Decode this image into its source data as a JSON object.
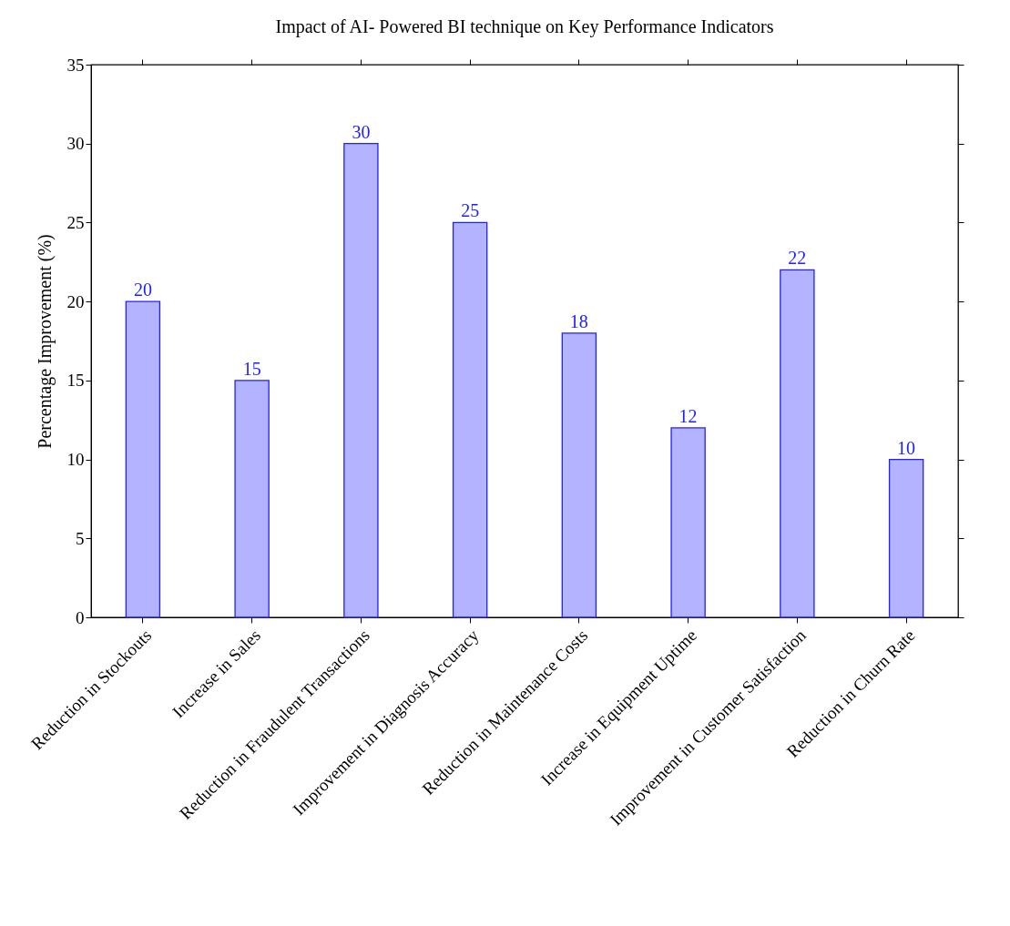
{
  "chart_data": {
    "type": "bar",
    "title": "Impact of AI- Powered BI technique on Key Performance Indicators",
    "ylabel": "Percentage Improvement (%)",
    "categories": [
      "Reduction in Stockouts",
      "Increase in Sales",
      "Reduction in Fraudulent Transactions",
      "Improvement in Diagnosis Accuracy",
      "Reduction in Maintenance Costs",
      "Increase in Equipment Uptime",
      "Improvement in Customer Satisfaction",
      "Reduction in Churn Rate"
    ],
    "values": [
      20,
      15,
      30,
      25,
      18,
      12,
      22,
      10
    ],
    "color": "#b3b3ff",
    "data_labels": true,
    "ylim": [
      0,
      35
    ],
    "yticks": [
      0,
      5,
      10,
      15,
      20,
      25,
      30,
      35
    ],
    "grid": false
  }
}
